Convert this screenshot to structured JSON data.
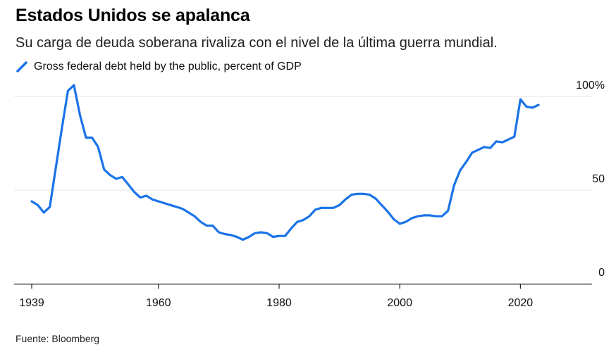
{
  "header": {
    "title": "Estados Unidos se apalanca",
    "subtitle": "Su carga de deuda soberana rivaliza con el nivel de la última guerra mundial."
  },
  "footer": {
    "source": "Fuente: Bloomberg"
  },
  "chart_data": {
    "type": "line",
    "title": "Estados Unidos se apalanca",
    "subtitle": "Su carga de deuda soberana rivaliza con el nivel de la última guerra mundial.",
    "xlabel": "",
    "ylabel": "",
    "xlim": [
      1939,
      2030
    ],
    "ylim": [
      0,
      100
    ],
    "x_ticks": [
      1939,
      1960,
      1980,
      2000,
      2020
    ],
    "y_ticks": [
      0,
      50,
      100
    ],
    "y_tick_labels": [
      "0",
      "50",
      "100%"
    ],
    "grid": "horizontal",
    "legend": "top-left",
    "color": "#1a73e8",
    "series": [
      {
        "name": "Gross federal debt held by the public, percent of GDP",
        "x": [
          1939,
          1940,
          1941,
          1942,
          1943,
          1944,
          1945,
          1946,
          1947,
          1948,
          1949,
          1950,
          1951,
          1952,
          1953,
          1954,
          1955,
          1956,
          1957,
          1958,
          1959,
          1960,
          1961,
          1962,
          1963,
          1964,
          1965,
          1966,
          1967,
          1968,
          1969,
          1970,
          1971,
          1972,
          1973,
          1974,
          1975,
          1976,
          1977,
          1978,
          1979,
          1980,
          1981,
          1982,
          1983,
          1984,
          1985,
          1986,
          1987,
          1988,
          1989,
          1990,
          1991,
          1992,
          1993,
          1994,
          1995,
          1996,
          1997,
          1998,
          1999,
          2000,
          2001,
          2002,
          2003,
          2004,
          2005,
          2006,
          2007,
          2008,
          2009,
          2010,
          2011,
          2012,
          2013,
          2014,
          2015,
          2016,
          2017,
          2018,
          2019,
          2020,
          2021,
          2022,
          2023
        ],
        "values": [
          44,
          42,
          38,
          41,
          62,
          83,
          103,
          106,
          90,
          78,
          78,
          73,
          61,
          58,
          56,
          57,
          53,
          49,
          46,
          47,
          45,
          44,
          43,
          42,
          41,
          40,
          38,
          36,
          33,
          31,
          31,
          27.5,
          26.5,
          26,
          25,
          23.5,
          25,
          27,
          27.5,
          27,
          25,
          25.5,
          25.5,
          29.5,
          33,
          34,
          36,
          39.5,
          40.5,
          40.5,
          40.5,
          42,
          45,
          47.5,
          48,
          48,
          47.5,
          45.5,
          42,
          38.5,
          34.5,
          32,
          33,
          35,
          36,
          36.5,
          36.5,
          36,
          36,
          39,
          52.5,
          60.5,
          65,
          70,
          71.5,
          73,
          72.5,
          76,
          75.5,
          77,
          78.5,
          98.5,
          94.5,
          94,
          95.5
        ]
      }
    ]
  }
}
